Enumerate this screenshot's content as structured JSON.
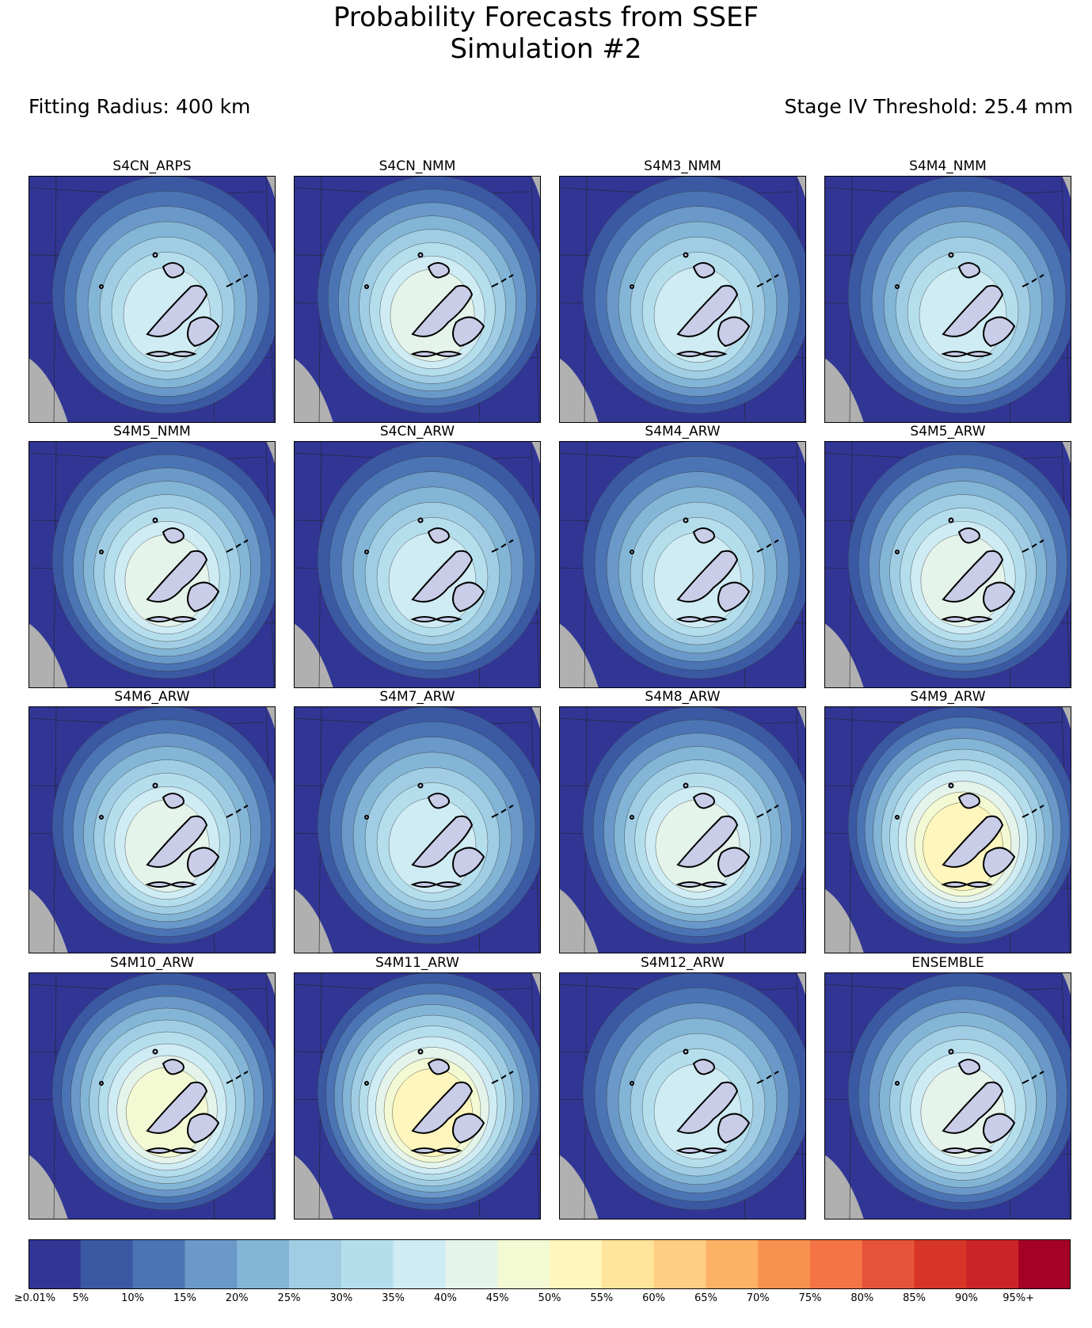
{
  "title": {
    "line1": "Probability Forecasts from SSEF",
    "line2": "Simulation #2"
  },
  "subtitle_left": "Fitting Radius: 400 km",
  "subtitle_right": "Stage IV Threshold: 25.4 mm",
  "chart_data": {
    "type": "heatmap",
    "title": "Probability Forecasts from SSEF Simulation #2",
    "panels": [
      {
        "name": "S4CN_ARPS",
        "peak": 0.35
      },
      {
        "name": "S4CN_NMM",
        "peak": 0.4
      },
      {
        "name": "S4M3_NMM",
        "peak": 0.35
      },
      {
        "name": "S4M4_NMM",
        "peak": 0.35
      },
      {
        "name": "S4M5_NMM",
        "peak": 0.4
      },
      {
        "name": "S4CN_ARW",
        "peak": 0.35
      },
      {
        "name": "S4M4_ARW",
        "peak": 0.35
      },
      {
        "name": "S4M5_ARW",
        "peak": 0.4
      },
      {
        "name": "S4M6_ARW",
        "peak": 0.4
      },
      {
        "name": "S4M7_ARW",
        "peak": 0.35
      },
      {
        "name": "S4M8_ARW",
        "peak": 0.4
      },
      {
        "name": "S4M9_ARW",
        "peak": 0.5
      },
      {
        "name": "S4M10_ARW",
        "peak": 0.45
      },
      {
        "name": "S4M11_ARW",
        "peak": 0.5
      },
      {
        "name": "S4M12_ARW",
        "peak": 0.35
      },
      {
        "name": "ENSEMBLE",
        "peak": 0.4
      }
    ],
    "colorbar": {
      "tick_labels": [
        "≥0.01%",
        "5%",
        "10%",
        "15%",
        "20%",
        "25%",
        "30%",
        "35%",
        "40%",
        "45%",
        "50%",
        "55%",
        "60%",
        "65%",
        "70%",
        "75%",
        "80%",
        "85%",
        "90%",
        "95%+"
      ],
      "colors": [
        "#313695",
        "#3b58a3",
        "#4a74b4",
        "#6a98c8",
        "#82b5d6",
        "#a0cde3",
        "#b5deed",
        "#cfebf3",
        "#e5f4ea",
        "#f3f9d3",
        "#fff6bd",
        "#fee59b",
        "#fdce83",
        "#fcb165",
        "#f8904f",
        "#f47446",
        "#e5543a",
        "#d73527",
        "#cb2427",
        "#a50026"
      ]
    }
  },
  "colors": {
    "background": "#ffffff",
    "no_data": "#b0b0b0",
    "observed_outline": "#000000"
  }
}
